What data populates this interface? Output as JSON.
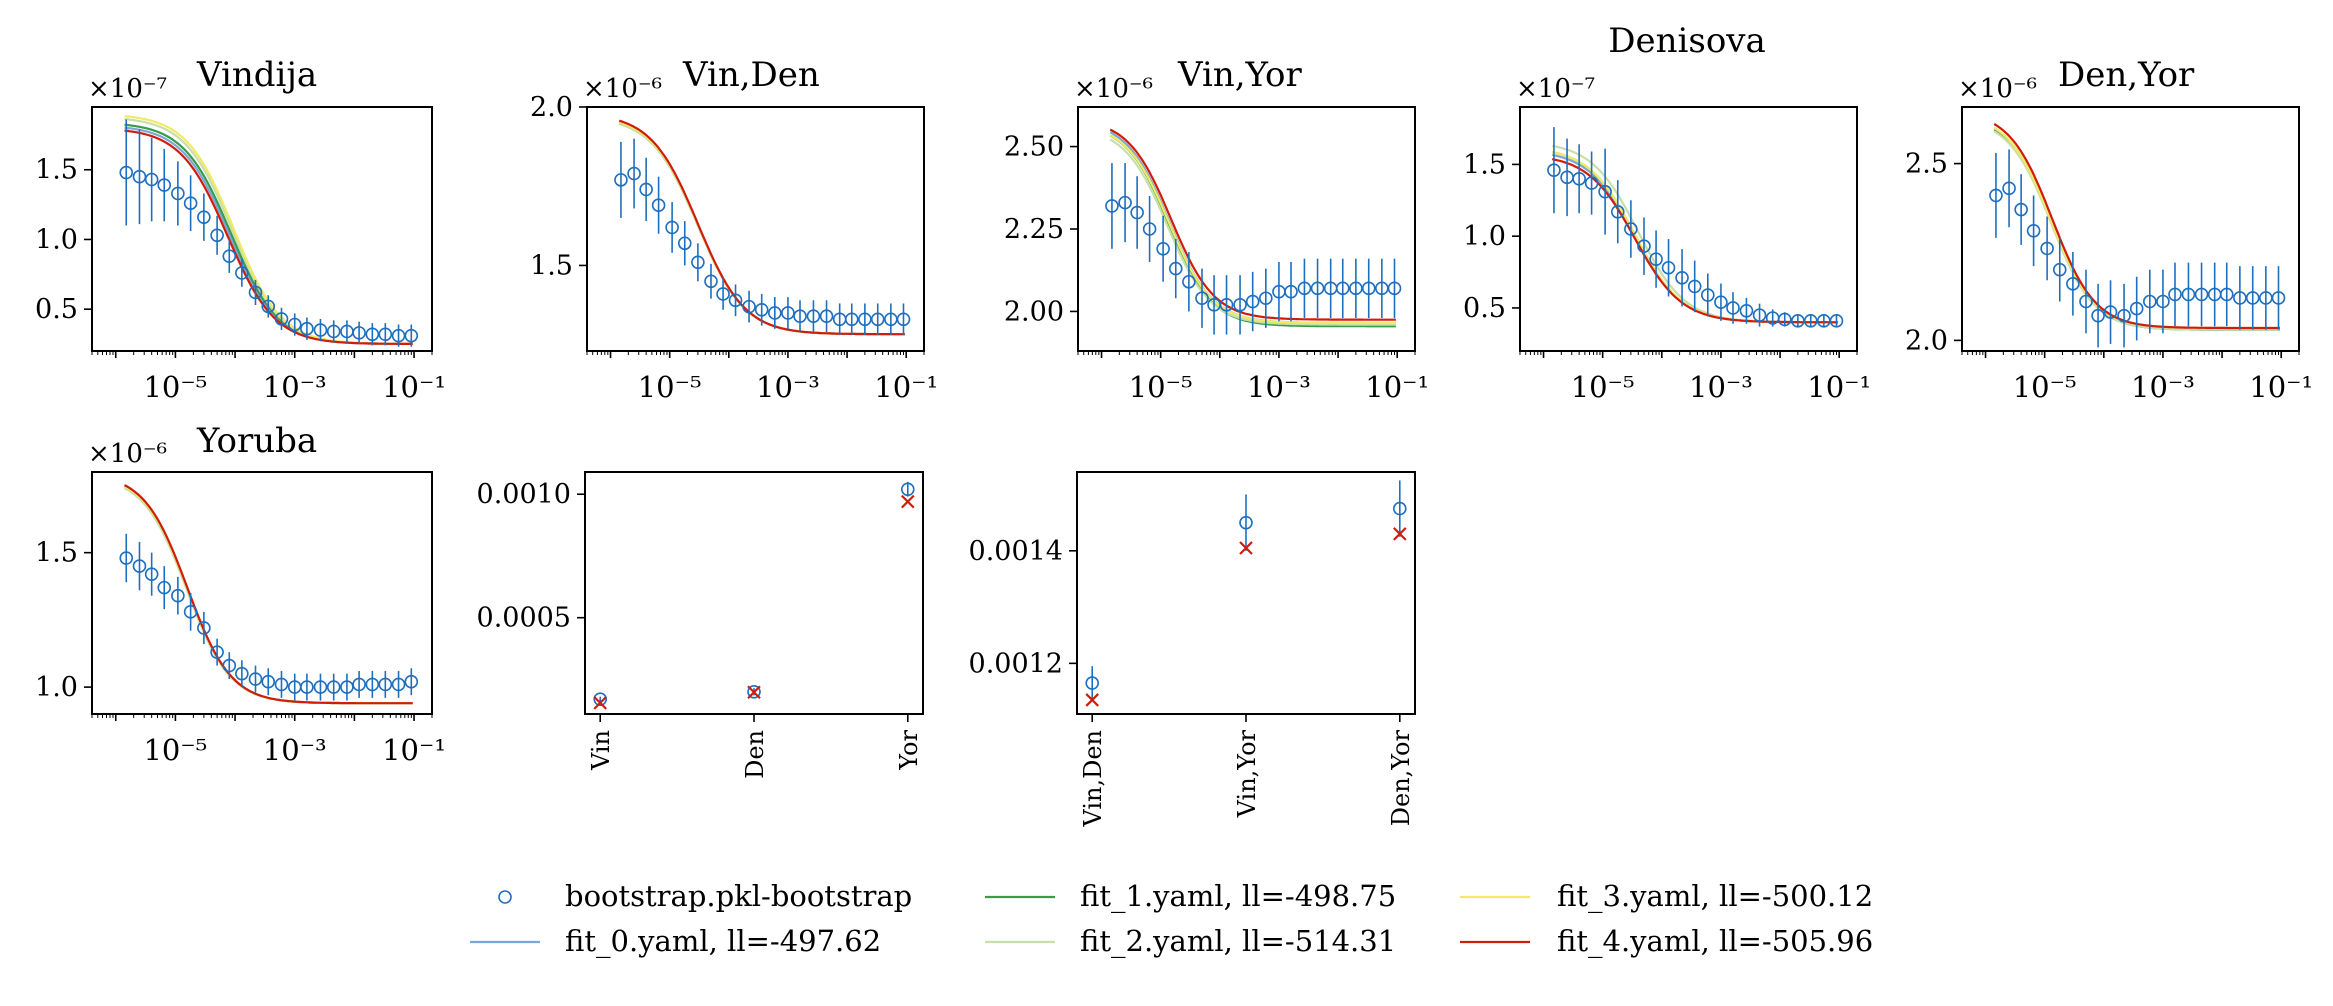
{
  "chart_data": [
    {
      "type": "scatter",
      "title": "Vindija",
      "scale_label": "×10⁻⁷",
      "xscale": "log",
      "xlim": [
        4e-07,
        0.2
      ],
      "ylim": [
        0.2,
        1.95
      ],
      "xticks": [
        1e-05,
        0.001,
        0.1
      ],
      "xtick_labels": [
        "10⁻⁵",
        "10⁻³",
        "10⁻¹"
      ],
      "yticks": [
        0.5,
        1.0,
        1.5
      ],
      "ytick_labels": [
        "0.5",
        "1.0",
        "1.5"
      ],
      "x": [
        1.5e-06,
        2.5e-06,
        4e-06,
        6.5e-06,
        1.1e-05,
        1.8e-05,
        3e-05,
        5e-05,
        8e-05,
        0.00013,
        0.00022,
        0.00036,
        0.0006,
        0.001,
        0.0016,
        0.0027,
        0.0045,
        0.0075,
        0.012,
        0.02,
        0.033,
        0.055,
        0.09
      ],
      "series": [
        {
          "name": "bootstrap.pkl-bootstrap",
          "values": [
            1.48,
            1.45,
            1.43,
            1.39,
            1.33,
            1.26,
            1.16,
            1.03,
            0.88,
            0.76,
            0.62,
            0.52,
            0.43,
            0.39,
            0.36,
            0.35,
            0.34,
            0.34,
            0.33,
            0.32,
            0.32,
            0.31,
            0.31
          ],
          "err": [
            0.38,
            0.34,
            0.3,
            0.26,
            0.23,
            0.2,
            0.17,
            0.14,
            0.12,
            0.1,
            0.09,
            0.08,
            0.08,
            0.08,
            0.08,
            0.08,
            0.08,
            0.08,
            0.08,
            0.08,
            0.08,
            0.08,
            0.08
          ]
        },
        {
          "name": "fit_0.yaml, ll=-497.62",
          "fit": {
            "high": 1.82,
            "low": 0.25,
            "mid": 8e-05,
            "steep": 1.1
          }
        },
        {
          "name": "fit_1.yaml, ll=-498.75",
          "fit": {
            "high": 1.84,
            "low": 0.25,
            "mid": 8.5e-05,
            "steep": 1.1
          }
        },
        {
          "name": "fit_2.yaml, ll=-514.31",
          "fit": {
            "high": 1.88,
            "low": 0.25,
            "mid": 9e-05,
            "steep": 1.1
          }
        },
        {
          "name": "fit_3.yaml, ll=-500.12",
          "fit": {
            "high": 1.9,
            "low": 0.25,
            "mid": 9.5e-05,
            "steep": 1.1
          }
        },
        {
          "name": "fit_4.yaml, ll=-505.96",
          "fit": {
            "high": 1.8,
            "low": 0.25,
            "mid": 7.5e-05,
            "steep": 1.1
          }
        }
      ]
    },
    {
      "type": "scatter",
      "title": "Vin,Den",
      "scale_label": "×10⁻⁶",
      "xscale": "log",
      "xlim": [
        4e-07,
        0.2
      ],
      "ylim": [
        1.23,
        2.0
      ],
      "xticks": [
        1e-05,
        0.001,
        0.1
      ],
      "xtick_labels": [
        "10⁻⁵",
        "10⁻³",
        "10⁻¹"
      ],
      "yticks": [
        1.5,
        2.0
      ],
      "ytick_labels": [
        "1.5",
        "2.0"
      ],
      "x": [
        1.5e-06,
        2.5e-06,
        4e-06,
        6.5e-06,
        1.1e-05,
        1.8e-05,
        3e-05,
        5e-05,
        8e-05,
        0.00013,
        0.00022,
        0.00036,
        0.0006,
        0.001,
        0.0016,
        0.0027,
        0.0045,
        0.0075,
        0.012,
        0.02,
        0.033,
        0.055,
        0.09
      ],
      "series": [
        {
          "name": "bootstrap.pkl-bootstrap",
          "values": [
            1.77,
            1.79,
            1.74,
            1.69,
            1.62,
            1.57,
            1.51,
            1.45,
            1.41,
            1.39,
            1.37,
            1.36,
            1.35,
            1.35,
            1.34,
            1.34,
            1.34,
            1.33,
            1.33,
            1.33,
            1.33,
            1.33,
            1.33
          ],
          "err": [
            0.12,
            0.11,
            0.1,
            0.09,
            0.08,
            0.07,
            0.06,
            0.055,
            0.05,
            0.05,
            0.05,
            0.05,
            0.05,
            0.05,
            0.05,
            0.05,
            0.05,
            0.05,
            0.05,
            0.05,
            0.05,
            0.05,
            0.05
          ]
        },
        {
          "name": "fit_0.yaml, ll=-497.62",
          "fit": {
            "high": 1.975,
            "low": 1.283,
            "mid": 3e-05,
            "steep": 1.1
          }
        },
        {
          "name": "fit_1.yaml, ll=-498.75",
          "fit": {
            "high": 1.97,
            "low": 1.283,
            "mid": 3e-05,
            "steep": 1.1
          }
        },
        {
          "name": "fit_2.yaml, ll=-514.31",
          "fit": {
            "high": 1.97,
            "low": 1.283,
            "mid": 3e-05,
            "steep": 1.1
          }
        },
        {
          "name": "fit_3.yaml, ll=-500.12",
          "fit": {
            "high": 1.975,
            "low": 1.283,
            "mid": 3e-05,
            "steep": 1.1
          }
        },
        {
          "name": "fit_4.yaml, ll=-505.96",
          "fit": {
            "high": 1.98,
            "low": 1.283,
            "mid": 3e-05,
            "steep": 1.1
          }
        }
      ]
    },
    {
      "type": "scatter",
      "title": "Vin,Yor",
      "scale_label": "×10⁻⁶",
      "xscale": "log",
      "xlim": [
        4e-07,
        0.2
      ],
      "ylim": [
        1.88,
        2.62
      ],
      "xticks": [
        1e-05,
        0.001,
        0.1
      ],
      "xtick_labels": [
        "10⁻⁵",
        "10⁻³",
        "10⁻¹"
      ],
      "yticks": [
        2.0,
        2.25,
        2.5
      ],
      "ytick_labels": [
        "2.00",
        "2.25",
        "2.50"
      ],
      "x": [
        1.5e-06,
        2.5e-06,
        4e-06,
        6.5e-06,
        1.1e-05,
        1.8e-05,
        3e-05,
        5e-05,
        8e-05,
        0.00013,
        0.00022,
        0.00036,
        0.0006,
        0.001,
        0.0016,
        0.0027,
        0.0045,
        0.0075,
        0.012,
        0.02,
        0.033,
        0.055,
        0.09
      ],
      "series": [
        {
          "name": "bootstrap.pkl-bootstrap",
          "values": [
            2.32,
            2.33,
            2.3,
            2.25,
            2.19,
            2.13,
            2.09,
            2.04,
            2.02,
            2.02,
            2.02,
            2.03,
            2.04,
            2.06,
            2.06,
            2.07,
            2.07,
            2.07,
            2.07,
            2.07,
            2.07,
            2.07,
            2.07
          ],
          "err": [
            0.13,
            0.12,
            0.11,
            0.1,
            0.1,
            0.09,
            0.09,
            0.09,
            0.09,
            0.09,
            0.09,
            0.09,
            0.09,
            0.09,
            0.09,
            0.09,
            0.09,
            0.09,
            0.09,
            0.09,
            0.09,
            0.09,
            0.09
          ]
        },
        {
          "name": "fit_0.yaml, ll=-497.62",
          "fit": {
            "high": 2.58,
            "low": 1.965,
            "mid": 1.4e-05,
            "steep": 1.2
          }
        },
        {
          "name": "fit_1.yaml, ll=-498.75",
          "fit": {
            "high": 2.57,
            "low": 1.955,
            "mid": 1.4e-05,
            "steep": 1.2
          }
        },
        {
          "name": "fit_2.yaml, ll=-514.31",
          "fit": {
            "high": 2.56,
            "low": 1.96,
            "mid": 1.3e-05,
            "steep": 1.2
          }
        },
        {
          "name": "fit_3.yaml, ll=-500.12",
          "fit": {
            "high": 2.57,
            "low": 1.965,
            "mid": 1.4e-05,
            "steep": 1.2
          }
        },
        {
          "name": "fit_4.yaml, ll=-505.96",
          "fit": {
            "high": 2.585,
            "low": 1.975,
            "mid": 1.5e-05,
            "steep": 1.2
          }
        }
      ]
    },
    {
      "type": "scatter",
      "title": "Denisova",
      "scale_label": "×10⁻⁷",
      "xscale": "log",
      "xlim": [
        4e-07,
        0.2
      ],
      "ylim": [
        0.2,
        1.9
      ],
      "xticks": [
        1e-05,
        0.001,
        0.1
      ],
      "xtick_labels": [
        "10⁻⁵",
        "10⁻³",
        "10⁻¹"
      ],
      "yticks": [
        0.5,
        1.0,
        1.5
      ],
      "ytick_labels": [
        "0.5",
        "1.0",
        "1.5"
      ],
      "x": [
        1.5e-06,
        2.5e-06,
        4e-06,
        6.5e-06,
        1.1e-05,
        1.8e-05,
        3e-05,
        5e-05,
        8e-05,
        0.00013,
        0.00022,
        0.00036,
        0.0006,
        0.001,
        0.0016,
        0.0027,
        0.0045,
        0.0075,
        0.012,
        0.02,
        0.033,
        0.055,
        0.09
      ],
      "series": [
        {
          "name": "bootstrap.pkl-bootstrap",
          "values": [
            1.46,
            1.41,
            1.4,
            1.37,
            1.31,
            1.17,
            1.05,
            0.93,
            0.84,
            0.78,
            0.71,
            0.65,
            0.59,
            0.54,
            0.5,
            0.48,
            0.45,
            0.43,
            0.42,
            0.41,
            0.41,
            0.41,
            0.41
          ],
          "err": [
            0.3,
            0.27,
            0.24,
            0.22,
            0.3,
            0.22,
            0.2,
            0.2,
            0.2,
            0.2,
            0.2,
            0.18,
            0.15,
            0.13,
            0.11,
            0.09,
            0.08,
            0.06,
            0.05,
            0.04,
            0.04,
            0.04,
            0.04
          ]
        },
        {
          "name": "fit_0.yaml, ll=-497.62",
          "fit": {
            "high": 1.6,
            "low": 0.4,
            "mid": 3.5e-05,
            "steep": 1.1
          }
        },
        {
          "name": "fit_1.yaml, ll=-498.75",
          "fit": {
            "high": 1.62,
            "low": 0.4,
            "mid": 3.5e-05,
            "steep": 1.1
          }
        },
        {
          "name": "fit_2.yaml, ll=-514.31",
          "fit": {
            "high": 1.66,
            "low": 0.4,
            "mid": 4e-05,
            "steep": 1.1
          }
        },
        {
          "name": "fit_3.yaml, ll=-500.12",
          "fit": {
            "high": 1.62,
            "low": 0.4,
            "mid": 3.5e-05,
            "steep": 1.1
          }
        },
        {
          "name": "fit_4.yaml, ll=-505.96",
          "fit": {
            "high": 1.57,
            "low": 0.4,
            "mid": 3.5e-05,
            "steep": 1.1
          }
        }
      ]
    },
    {
      "type": "scatter",
      "title": "Den,Yor",
      "scale_label": "×10⁻⁶",
      "xscale": "log",
      "xlim": [
        4e-07,
        0.2
      ],
      "ylim": [
        1.97,
        2.66
      ],
      "xticks": [
        1e-05,
        0.001,
        0.1
      ],
      "xtick_labels": [
        "10⁻⁵",
        "10⁻³",
        "10⁻¹"
      ],
      "yticks": [
        2.0,
        2.5
      ],
      "ytick_labels": [
        "2.0",
        "2.5"
      ],
      "x": [
        1.5e-06,
        2.5e-06,
        4e-06,
        6.5e-06,
        1.1e-05,
        1.8e-05,
        3e-05,
        5e-05,
        8e-05,
        0.00013,
        0.00022,
        0.00036,
        0.0006,
        0.001,
        0.0016,
        0.0027,
        0.0045,
        0.0075,
        0.012,
        0.02,
        0.033,
        0.055,
        0.09
      ],
      "series": [
        {
          "name": "bootstrap.pkl-bootstrap",
          "values": [
            2.41,
            2.43,
            2.37,
            2.31,
            2.26,
            2.2,
            2.16,
            2.11,
            2.07,
            2.08,
            2.07,
            2.09,
            2.11,
            2.11,
            2.13,
            2.13,
            2.13,
            2.13,
            2.13,
            2.12,
            2.12,
            2.12,
            2.12
          ],
          "err": [
            0.12,
            0.11,
            0.1,
            0.1,
            0.09,
            0.09,
            0.09,
            0.09,
            0.09,
            0.09,
            0.09,
            0.09,
            0.09,
            0.09,
            0.09,
            0.09,
            0.09,
            0.09,
            0.09,
            0.09,
            0.09,
            0.09,
            0.09
          ]
        },
        {
          "name": "fit_0.yaml, ll=-497.62",
          "fit": {
            "high": 2.64,
            "low": 2.03,
            "mid": 1.3e-05,
            "steep": 1.2
          }
        },
        {
          "name": "fit_1.yaml, ll=-498.75",
          "fit": {
            "high": 2.635,
            "low": 2.03,
            "mid": 1.3e-05,
            "steep": 1.2
          }
        },
        {
          "name": "fit_2.yaml, ll=-514.31",
          "fit": {
            "high": 2.63,
            "low": 2.03,
            "mid": 1.3e-05,
            "steep": 1.2
          }
        },
        {
          "name": "fit_3.yaml, ll=-500.12",
          "fit": {
            "high": 2.64,
            "low": 2.035,
            "mid": 1.3e-05,
            "steep": 1.2
          }
        },
        {
          "name": "fit_4.yaml, ll=-505.96",
          "fit": {
            "high": 2.65,
            "low": 2.035,
            "mid": 1.35e-05,
            "steep": 1.2
          }
        }
      ]
    },
    {
      "type": "scatter",
      "title": "Yoruba",
      "scale_label": "×10⁻⁶",
      "xscale": "log",
      "xlim": [
        4e-07,
        0.2
      ],
      "ylim": [
        0.9,
        1.8
      ],
      "xticks": [
        1e-05,
        0.001,
        0.1
      ],
      "xtick_labels": [
        "10⁻⁵",
        "10⁻³",
        "10⁻¹"
      ],
      "yticks": [
        1.0,
        1.5
      ],
      "ytick_labels": [
        "1.0",
        "1.5"
      ],
      "x": [
        1.5e-06,
        2.5e-06,
        4e-06,
        6.5e-06,
        1.1e-05,
        1.8e-05,
        3e-05,
        5e-05,
        8e-05,
        0.00013,
        0.00022,
        0.00036,
        0.0006,
        0.001,
        0.0016,
        0.0027,
        0.0045,
        0.0075,
        0.012,
        0.02,
        0.033,
        0.055,
        0.09
      ],
      "series": [
        {
          "name": "bootstrap.pkl-bootstrap",
          "values": [
            1.48,
            1.45,
            1.42,
            1.37,
            1.34,
            1.28,
            1.22,
            1.13,
            1.08,
            1.05,
            1.03,
            1.02,
            1.01,
            1.0,
            1.0,
            1.0,
            1.0,
            1.0,
            1.01,
            1.01,
            1.01,
            1.01,
            1.02
          ],
          "err": [
            0.09,
            0.09,
            0.08,
            0.08,
            0.07,
            0.07,
            0.06,
            0.05,
            0.05,
            0.05,
            0.05,
            0.05,
            0.05,
            0.05,
            0.05,
            0.05,
            0.05,
            0.05,
            0.05,
            0.05,
            0.05,
            0.05,
            0.05
          ]
        },
        {
          "name": "fit_0.yaml, ll=-497.62",
          "fit": {
            "high": 1.79,
            "low": 0.94,
            "mid": 1.6e-05,
            "steep": 1.2
          }
        },
        {
          "name": "fit_1.yaml, ll=-498.75",
          "fit": {
            "high": 1.79,
            "low": 0.94,
            "mid": 1.6e-05,
            "steep": 1.2
          }
        },
        {
          "name": "fit_2.yaml, ll=-514.31",
          "fit": {
            "high": 1.785,
            "low": 0.94,
            "mid": 1.55e-05,
            "steep": 1.2
          }
        },
        {
          "name": "fit_3.yaml, ll=-500.12",
          "fit": {
            "high": 1.79,
            "low": 0.94,
            "mid": 1.6e-05,
            "steep": 1.2
          }
        },
        {
          "name": "fit_4.yaml, ll=-505.96",
          "fit": {
            "high": 1.795,
            "low": 0.94,
            "mid": 1.6e-05,
            "steep": 1.2
          }
        }
      ]
    },
    {
      "type": "scatter",
      "title": "",
      "categories": [
        "Vin",
        "Den",
        "Yor"
      ],
      "ylim": [
        0.00011,
        0.00109
      ],
      "yticks": [
        0.0005,
        0.001
      ],
      "ytick_labels": [
        "0.0005",
        "0.0010"
      ],
      "series": [
        {
          "name": "bootstrap.pkl-bootstrap",
          "values": [
            0.00017,
            0.0002,
            0.00102
          ],
          "err": [
            1e-05,
            1.5e-05,
            3e-05
          ]
        },
        {
          "name": "fit_4.yaml, ll=-505.96",
          "marker": "x",
          "values": [
            0.000155,
            0.000198,
            0.00097
          ]
        }
      ]
    },
    {
      "type": "scatter",
      "title": "",
      "categories": [
        "Vin,Den",
        "Vin,Yor",
        "Den,Yor"
      ],
      "ylim": [
        0.00111,
        0.00154
      ],
      "yticks": [
        0.0012,
        0.0014
      ],
      "ytick_labels": [
        "0.0012",
        "0.0014"
      ],
      "series": [
        {
          "name": "bootstrap.pkl-bootstrap",
          "values": [
            0.001165,
            0.00145,
            0.001475
          ],
          "err": [
            3e-05,
            5e-05,
            5e-05
          ]
        },
        {
          "name": "fit_4.yaml, ll=-505.96",
          "marker": "x",
          "values": [
            0.001135,
            0.001405,
            0.00143
          ]
        }
      ]
    }
  ],
  "legend": {
    "placement": "bottom-center",
    "items": [
      {
        "label": "bootstrap.pkl-bootstrap",
        "kind": "marker",
        "color": "#1f6fbf"
      },
      {
        "label": "fit_0.yaml, ll=-497.62",
        "kind": "line",
        "color": "#79a8d6"
      },
      {
        "label": "fit_1.yaml, ll=-498.75",
        "kind": "line",
        "color": "#3a9b4a"
      },
      {
        "label": "fit_2.yaml, ll=-514.31",
        "kind": "line",
        "color": "#c7dfa8"
      },
      {
        "label": "fit_3.yaml, ll=-500.12",
        "kind": "line",
        "color": "#f2ea66"
      },
      {
        "label": "fit_4.yaml, ll=-505.96",
        "kind": "line",
        "color": "#d01c0c"
      }
    ]
  },
  "colors": {
    "points": "#1f6fbf",
    "cross": "#d01c0c",
    "fits": [
      "#79a8d6",
      "#3a9b4a",
      "#c7dfa8",
      "#f2ea66",
      "#d01c0c"
    ]
  }
}
